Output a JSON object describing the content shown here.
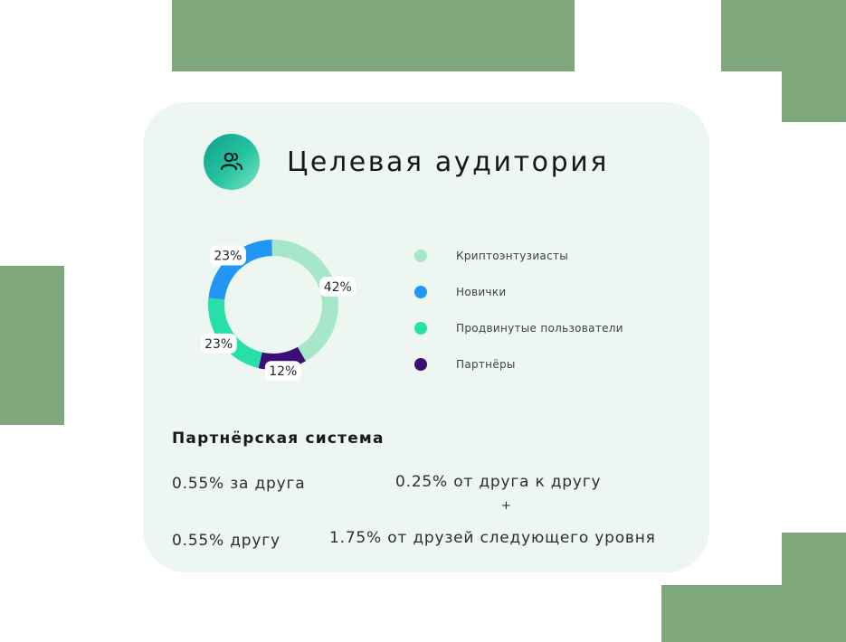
{
  "colors": {
    "decor": "#7fa97c",
    "card_bg": "#edf6f1",
    "crypto": "#a6e6c9",
    "newbies": "#2196f3",
    "advanced": "#27e0a8",
    "partners": "#3b0f73"
  },
  "header": {
    "icon": "users-icon",
    "title": "Целевая аудитория"
  },
  "chart_data": {
    "type": "pie",
    "categories": [
      "Криптоэнтузиасты",
      "Новички",
      "Продвинутые пользователи",
      "Партнёры"
    ],
    "values": [
      42,
      23,
      23,
      12
    ],
    "value_labels": [
      "42%",
      "23%",
      "23%",
      "12%"
    ],
    "legend_position": "right",
    "donut": true
  },
  "partner_system": {
    "title": "Партнёрская система",
    "left_top": "0.55% за друга",
    "left_bottom": "0.55% другу",
    "right_top": "0.25% от друга к другу",
    "plus": "+",
    "right_bottom": "1.75% от друзей следующего уровня"
  }
}
